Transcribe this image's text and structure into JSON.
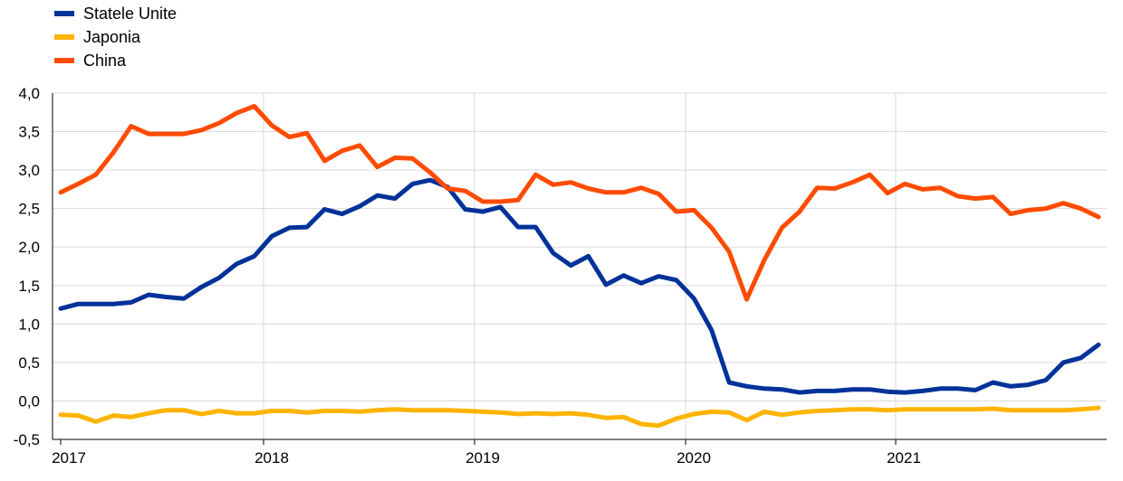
{
  "chart_data": {
    "type": "line",
    "title": "",
    "xlabel": "",
    "ylabel": "",
    "ylim": [
      -0.5,
      4.0
    ],
    "yticks": [
      "4,0",
      "3,5",
      "3,0",
      "2,5",
      "2,0",
      "1,5",
      "1,0",
      "0,5",
      "0,0",
      "-0,5"
    ],
    "xticks": [
      "2017",
      "2018",
      "2019",
      "2020",
      "2021"
    ],
    "legend_position": "top-left",
    "grid": true,
    "series": [
      {
        "name": "Statele Unite",
        "color": "#003299",
        "values": [
          1.2,
          1.26,
          1.26,
          1.26,
          1.28,
          1.38,
          1.35,
          1.33,
          1.48,
          1.6,
          1.78,
          1.88,
          2.14,
          2.25,
          2.26,
          2.49,
          2.43,
          2.53,
          2.67,
          2.63,
          2.82,
          2.87,
          2.78,
          2.49,
          2.46,
          2.52,
          2.26,
          2.26,
          1.92,
          1.76,
          1.88,
          1.51,
          1.63,
          1.53,
          1.62,
          1.57,
          1.33,
          0.92,
          0.24,
          0.19,
          0.16,
          0.15,
          0.11,
          0.13,
          0.13,
          0.15,
          0.15,
          0.12,
          0.11,
          0.13,
          0.16,
          0.16,
          0.14,
          0.24,
          0.19,
          0.21,
          0.27,
          0.5,
          0.56,
          0.73
        ]
      },
      {
        "name": "Japonia",
        "color": "#FFB400",
        "values": [
          -0.18,
          -0.19,
          -0.27,
          -0.19,
          -0.21,
          -0.16,
          -0.12,
          -0.12,
          -0.17,
          -0.13,
          -0.16,
          -0.16,
          -0.13,
          -0.13,
          -0.15,
          -0.13,
          -0.13,
          -0.14,
          -0.12,
          -0.11,
          -0.12,
          -0.12,
          -0.12,
          -0.13,
          -0.14,
          -0.15,
          -0.17,
          -0.16,
          -0.17,
          -0.16,
          -0.18,
          -0.22,
          -0.21,
          -0.3,
          -0.32,
          -0.23,
          -0.17,
          -0.14,
          -0.15,
          -0.25,
          -0.14,
          -0.18,
          -0.15,
          -0.13,
          -0.12,
          -0.11,
          -0.11,
          -0.12,
          -0.11,
          -0.11,
          -0.11,
          -0.11,
          -0.11,
          -0.1,
          -0.12,
          -0.12,
          -0.12,
          -0.12,
          -0.11,
          -0.09
        ]
      },
      {
        "name": "China",
        "color": "#FF4B00",
        "values": [
          2.71,
          2.82,
          2.94,
          3.23,
          3.57,
          3.47,
          3.47,
          3.47,
          3.52,
          3.61,
          3.74,
          3.83,
          3.58,
          3.43,
          3.48,
          3.12,
          3.25,
          3.32,
          3.04,
          3.16,
          3.15,
          2.97,
          2.76,
          2.73,
          2.59,
          2.59,
          2.61,
          2.94,
          2.81,
          2.84,
          2.76,
          2.71,
          2.71,
          2.77,
          2.69,
          2.46,
          2.48,
          2.25,
          1.94,
          1.32,
          1.83,
          2.25,
          2.46,
          2.77,
          2.76,
          2.84,
          2.94,
          2.7,
          2.82,
          2.75,
          2.77,
          2.66,
          2.63,
          2.65,
          2.43,
          2.48,
          2.5,
          2.57,
          2.5,
          2.39
        ]
      }
    ]
  }
}
